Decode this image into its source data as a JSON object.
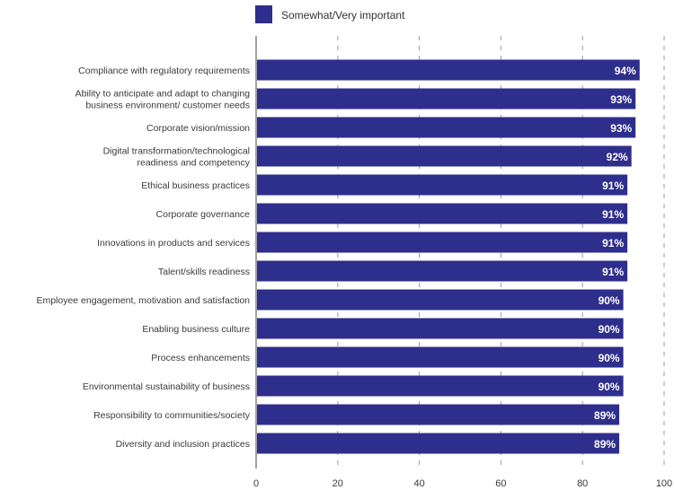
{
  "chart_data": {
    "type": "bar",
    "orientation": "horizontal",
    "title": "",
    "xlabel": "",
    "ylabel": "",
    "xlim": [
      0,
      100
    ],
    "xticks": [
      0,
      20,
      40,
      60,
      80,
      100
    ],
    "grid": "vertical dashed",
    "legend_position": "top-center",
    "series": [
      {
        "name": "Somewhat/Very important",
        "color": "#2e2e8c",
        "values": [
          94,
          93,
          93,
          92,
          91,
          91,
          91,
          91,
          90,
          90,
          90,
          90,
          89,
          89
        ],
        "data_labels": [
          "94%",
          "93%",
          "93%",
          "92%",
          "91%",
          "91%",
          "91%",
          "91%",
          "90%",
          "90%",
          "90%",
          "90%",
          "89%",
          "89%"
        ]
      }
    ],
    "categories": [
      [
        "Compliance with regulatory requirements"
      ],
      [
        "Ability to anticipate and adapt to changing",
        "business environment/ customer needs"
      ],
      [
        "Corporate vision/mission"
      ],
      [
        "Digital transformation/technological",
        "readiness and competency"
      ],
      [
        "Ethical business practices"
      ],
      [
        "Corporate governance"
      ],
      [
        "Innovations in products and services"
      ],
      [
        "Talent/skills readiness"
      ],
      [
        "Employee engagement, motivation and satisfaction"
      ],
      [
        "Enabling business culture"
      ],
      [
        "Process enhancements"
      ],
      [
        "Environmental sustainability of business"
      ],
      [
        "Responsibility to communities/society"
      ],
      [
        "Diversity and inclusion practices"
      ]
    ]
  }
}
